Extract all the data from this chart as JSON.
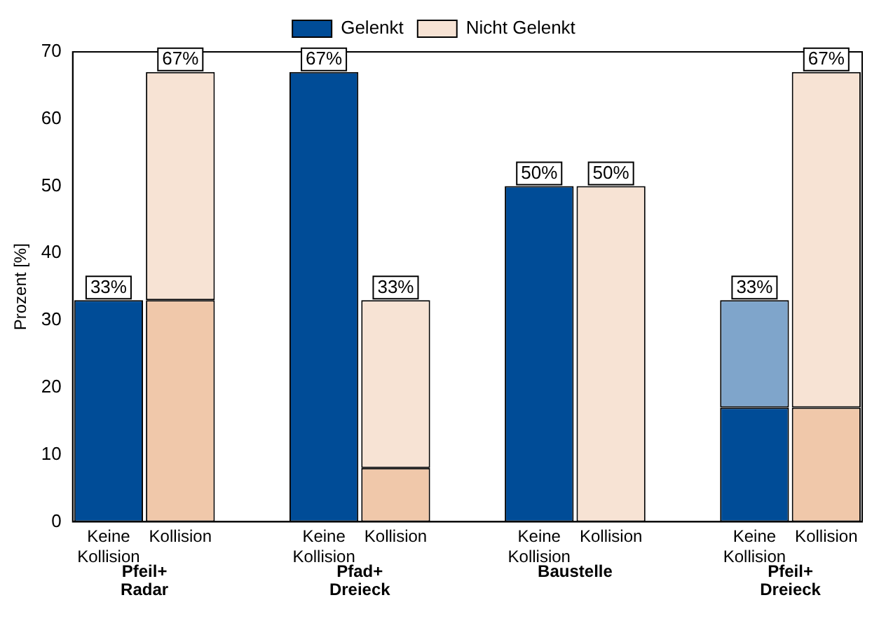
{
  "chart_data": {
    "type": "bar",
    "stacked": true,
    "ylabel": "Prozent [%]",
    "ylim": [
      0,
      70
    ],
    "yticks": [
      0,
      10,
      20,
      30,
      40,
      50,
      60,
      70
    ],
    "grid": false,
    "legend": "top",
    "categories": [
      "Keine Kollision",
      "Kollision",
      null,
      "Keine Kollision",
      "Kollision",
      null,
      "Keine Kollision",
      "Kollision",
      null,
      "Keine Kollision",
      "Kollision"
    ],
    "series": [
      {
        "name": "Gelenkt",
        "colors": [
          "#004c97",
          "#f0c8aa",
          null,
          "#004c97",
          "#f0c8aa",
          null,
          "#004c97",
          null,
          null,
          "#004c97",
          "#f0c8aa"
        ],
        "values": [
          33,
          33,
          null,
          67,
          8,
          null,
          50,
          null,
          null,
          17,
          17
        ]
      },
      {
        "name": "Nicht Gelenkt",
        "colors": [
          null,
          "#f7e3d4",
          null,
          null,
          "#f7e3d4",
          null,
          null,
          "#f7e3d4",
          null,
          "#7fa5cb",
          "#f7e3d4"
        ],
        "values": [
          null,
          34,
          null,
          null,
          25,
          null,
          null,
          50,
          null,
          16,
          50
        ]
      }
    ],
    "totals": [
      "33%",
      "67%",
      null,
      "67%",
      "33%",
      null,
      "50%",
      "50%",
      null,
      "33%",
      "67%"
    ],
    "annotations": [
      "Pfeil+ Radar",
      "Pfad+ Dreieck",
      "Baustelle",
      "Pfeil+ Dreieck"
    ]
  }
}
